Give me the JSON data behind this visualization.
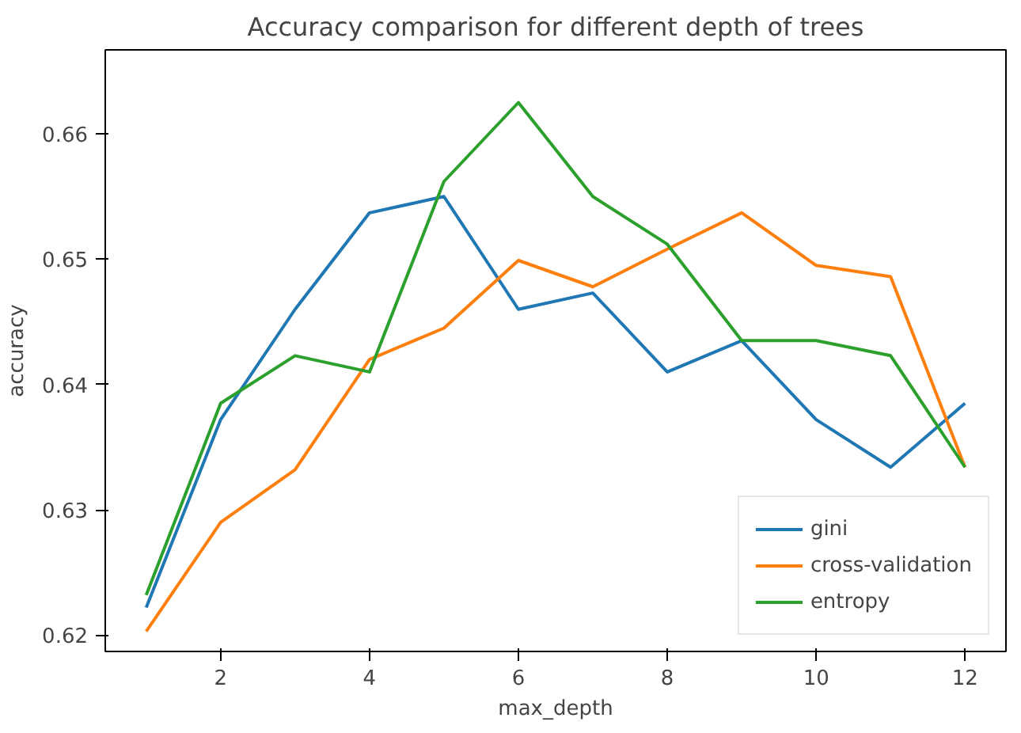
{
  "chart_data": {
    "type": "line",
    "title": "Accuracy comparison for different depth of trees",
    "xlabel": "max_depth",
    "ylabel": "accuracy",
    "x": [
      1,
      2,
      3,
      4,
      5,
      6,
      7,
      8,
      9,
      10,
      11,
      12
    ],
    "series": [
      {
        "name": "gini",
        "color": "#1f77b4",
        "values": [
          0.6222,
          0.6372,
          0.646,
          0.6537,
          0.655,
          0.646,
          0.6473,
          0.641,
          0.6435,
          0.6372,
          0.6334,
          0.6385
        ]
      },
      {
        "name": "cross-validation",
        "color": "#ff7f0e",
        "values": [
          0.6203,
          0.629,
          0.6332,
          0.642,
          0.6445,
          0.6499,
          0.6478,
          0.6508,
          0.6537,
          0.6495,
          0.6486,
          0.6334
        ]
      },
      {
        "name": "entropy",
        "color": "#2ca02c",
        "values": [
          0.6232,
          0.6385,
          0.6423,
          0.641,
          0.6562,
          0.6625,
          0.655,
          0.6512,
          0.6435,
          0.6435,
          0.6423,
          0.6334
        ]
      }
    ],
    "xlim": [
      0.45,
      12.55
    ],
    "ylim": [
      0.6187,
      0.6667
    ],
    "xticks": [
      2,
      4,
      6,
      8,
      10,
      12
    ],
    "yticks": [
      0.62,
      0.63,
      0.64,
      0.65,
      0.66
    ],
    "grid": false,
    "legend": "bottom right",
    "line_style": "solid",
    "marker": "none"
  }
}
